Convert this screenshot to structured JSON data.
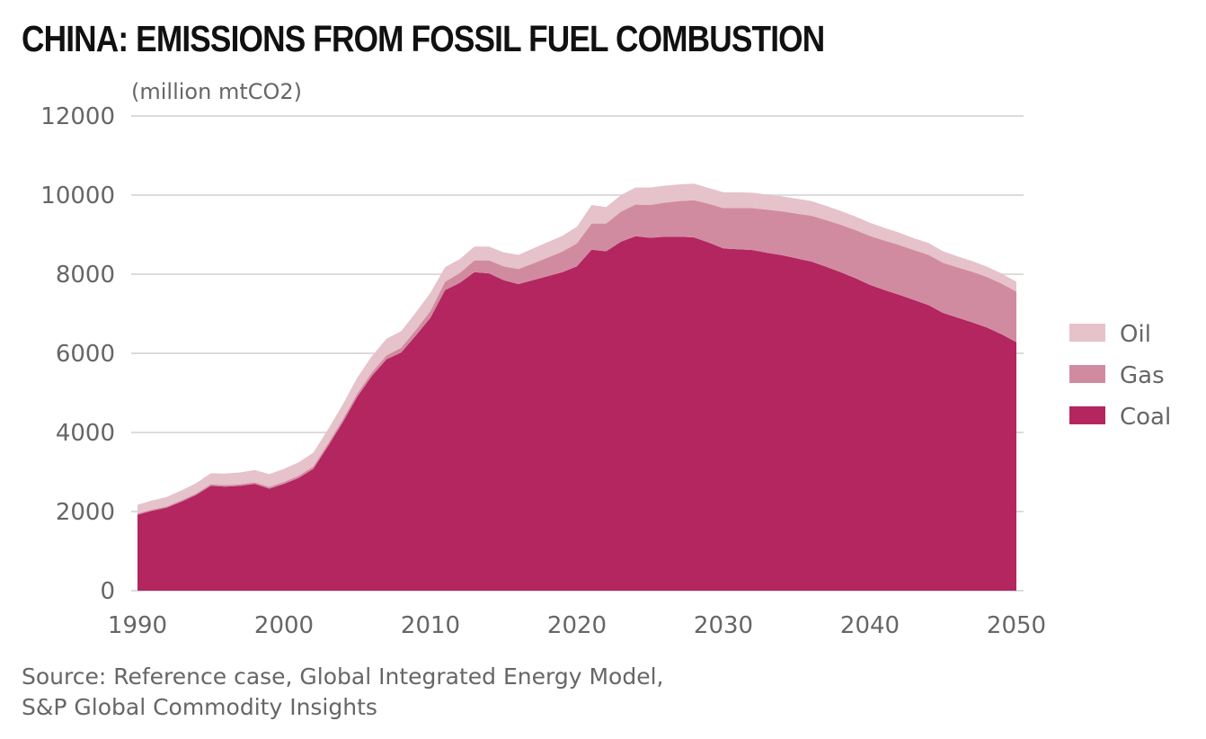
{
  "chart_data": {
    "type": "area",
    "stacked": true,
    "title": "CHINA: EMISSIONS FROM FOSSIL FUEL COMBUSTION",
    "ylabel": "(million mtCO2)",
    "xlabel": "",
    "xlim": [
      1990,
      2050
    ],
    "ylim": [
      0,
      12000
    ],
    "xticks": [
      1990,
      2000,
      2010,
      2020,
      2030,
      2040,
      2050
    ],
    "yticks": [
      0,
      2000,
      4000,
      6000,
      8000,
      10000,
      12000
    ],
    "grid": true,
    "legend_position": "right",
    "x": [
      1990,
      1991,
      1992,
      1993,
      1994,
      1995,
      1996,
      1997,
      1998,
      1999,
      2000,
      2001,
      2002,
      2003,
      2004,
      2005,
      2006,
      2007,
      2008,
      2009,
      2010,
      2011,
      2012,
      2013,
      2014,
      2015,
      2016,
      2017,
      2018,
      2019,
      2020,
      2021,
      2022,
      2023,
      2024,
      2025,
      2026,
      2027,
      2028,
      2029,
      2030,
      2031,
      2032,
      2033,
      2034,
      2035,
      2036,
      2037,
      2038,
      2039,
      2040,
      2041,
      2042,
      2043,
      2044,
      2045,
      2046,
      2047,
      2048,
      2049,
      2050
    ],
    "series": [
      {
        "name": "Coal",
        "color": "#b3265f",
        "values": [
          1920,
          2020,
          2100,
          2250,
          2420,
          2650,
          2630,
          2650,
          2700,
          2580,
          2700,
          2850,
          3080,
          3650,
          4250,
          4900,
          5430,
          5850,
          6020,
          6450,
          6900,
          7600,
          7780,
          8050,
          8020,
          7850,
          7750,
          7850,
          7950,
          8050,
          8200,
          8620,
          8580,
          8820,
          8960,
          8920,
          8950,
          8950,
          8930,
          8800,
          8650,
          8630,
          8610,
          8540,
          8480,
          8400,
          8320,
          8190,
          8050,
          7900,
          7730,
          7600,
          7480,
          7350,
          7220,
          7020,
          6900,
          6780,
          6650,
          6480,
          6280
        ]
      },
      {
        "name": "Gas",
        "color": "#d18ba0",
        "values": [
          30,
          30,
          30,
          35,
          35,
          40,
          40,
          40,
          40,
          45,
          50,
          55,
          60,
          65,
          70,
          80,
          90,
          100,
          120,
          140,
          170,
          210,
          250,
          300,
          330,
          350,
          380,
          420,
          470,
          520,
          580,
          660,
          700,
          760,
          800,
          830,
          860,
          900,
          940,
          980,
          1020,
          1040,
          1060,
          1090,
          1110,
          1130,
          1160,
          1180,
          1200,
          1220,
          1240,
          1250,
          1260,
          1260,
          1270,
          1270,
          1270,
          1280,
          1280,
          1280,
          1280
        ]
      },
      {
        "name": "Oil",
        "color": "#e6c2cb",
        "values": [
          220,
          230,
          240,
          250,
          260,
          280,
          290,
          300,
          310,
          320,
          330,
          340,
          350,
          360,
          380,
          400,
          410,
          420,
          420,
          440,
          460,
          370,
          350,
          350,
          350,
          350,
          360,
          380,
          390,
          400,
          420,
          470,
          420,
          420,
          430,
          440,
          430,
          420,
          420,
          400,
          400,
          400,
          390,
          380,
          380,
          380,
          370,
          360,
          350,
          340,
          330,
          320,
          310,
          300,
          300,
          290,
          280,
          270,
          260,
          255,
          250
        ]
      }
    ],
    "source": [
      "Source: Reference case, Global Integrated Energy Model,",
      "S&P Global Commodity Insights"
    ]
  }
}
